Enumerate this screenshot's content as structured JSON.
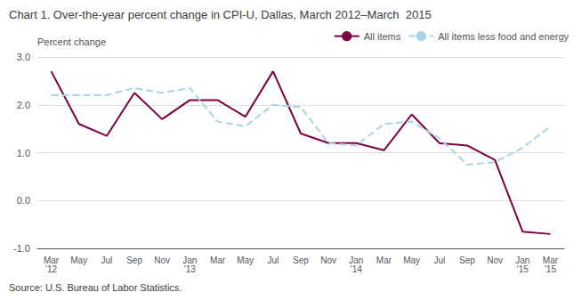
{
  "chart_data": {
    "type": "line",
    "title": "Chart 1. Over-the-year percent change in CPI-U, Dallas, March 2012–March  2015",
    "ylabel": "Percent change",
    "annotations": [
      "Source: U.S. Bureau of Labor Statistics."
    ],
    "categories": [
      "Mar\n'12",
      "May",
      "Jul",
      "Sep",
      "Nov",
      "Jan\n'13",
      "Mar",
      "May",
      "Jul",
      "Sep",
      "Nov",
      "Jan\n'14",
      "Mar",
      "May",
      "Jul",
      "Sep",
      "Nov",
      "Jan\n'15",
      "Mar\n'15"
    ],
    "series": [
      {
        "name": "All items",
        "color": "#7b0041",
        "line_style": "solid",
        "values": [
          2.7,
          1.6,
          1.35,
          2.25,
          1.7,
          2.1,
          2.1,
          1.75,
          2.7,
          1.4,
          1.2,
          1.2,
          1.05,
          1.8,
          1.2,
          1.15,
          0.85,
          -0.65,
          -0.7
        ]
      },
      {
        "name": "All items less food and energy",
        "color": "#a8d4e8",
        "line_style": "dashed",
        "values": [
          2.2,
          2.2,
          2.2,
          2.35,
          2.25,
          2.35,
          1.65,
          1.55,
          2.0,
          1.95,
          1.2,
          1.15,
          1.6,
          1.65,
          1.3,
          0.75,
          0.8,
          1.1,
          1.55
        ]
      }
    ],
    "ylim": [
      -1.0,
      3.0
    ],
    "yticks": [
      {
        "value": -1.0,
        "label": "-1.0"
      },
      {
        "value": 0.0,
        "label": "0.0"
      },
      {
        "value": 1.0,
        "label": "1.0"
      },
      {
        "value": 2.0,
        "label": "2.0"
      },
      {
        "value": 3.0,
        "label": "3.0"
      }
    ],
    "grid": true,
    "legend": "upper right"
  }
}
